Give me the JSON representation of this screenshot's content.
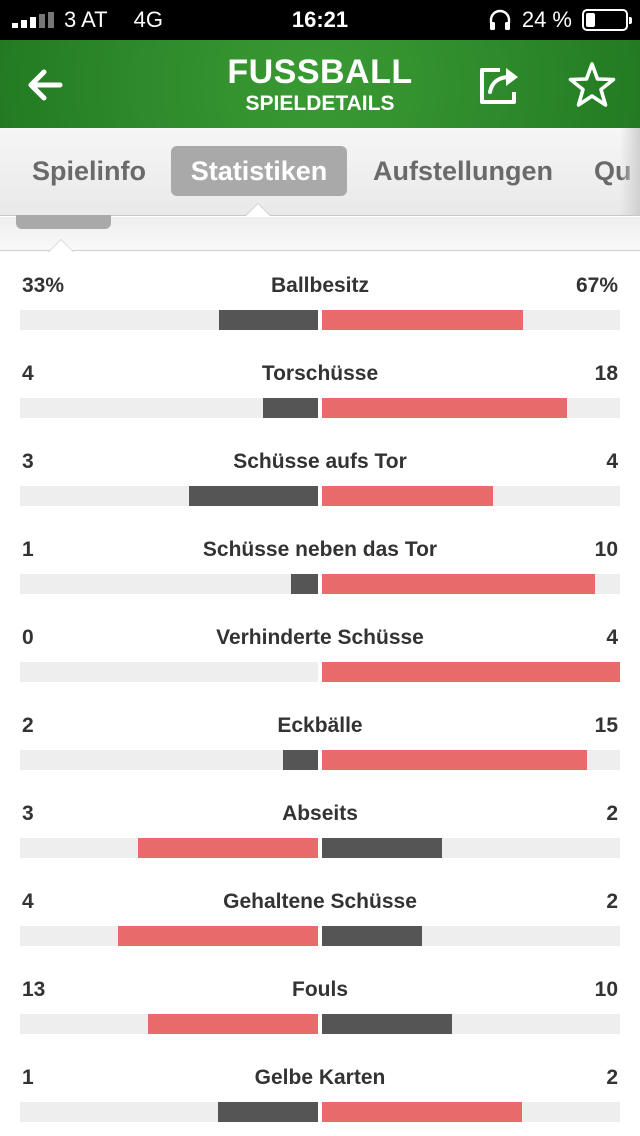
{
  "status_bar": {
    "carrier": "3 AT",
    "network": "4G",
    "time": "16:21",
    "battery": "24 %",
    "battery_level": 0.24
  },
  "header": {
    "title": "FUSSBALL",
    "subtitle": "SPIELDETAILS"
  },
  "tabs": [
    {
      "label": "Spielinfo",
      "active": false
    },
    {
      "label": "Statistiken",
      "active": true
    },
    {
      "label": "Aufstellungen",
      "active": false
    },
    {
      "label": "Qu",
      "active": false
    }
  ],
  "colors": {
    "header_green": "#2e8a2b",
    "home_bar_dark": "#555555",
    "away_bar_red": "#e86a6a",
    "track_gray": "#eeeeee"
  },
  "stats": [
    {
      "label": "Ballbesitz",
      "home": "33%",
      "away": "67%",
      "home_value": 33,
      "away_value": 67,
      "leader": "away"
    },
    {
      "label": "Torschüsse",
      "home": "4",
      "away": "18",
      "home_value": 4,
      "away_value": 18,
      "leader": "away"
    },
    {
      "label": "Schüsse aufs Tor",
      "home": "3",
      "away": "4",
      "home_value": 3,
      "away_value": 4,
      "leader": "away"
    },
    {
      "label": "Schüsse neben das Tor",
      "home": "1",
      "away": "10",
      "home_value": 1,
      "away_value": 10,
      "leader": "away"
    },
    {
      "label": "Verhinderte Schüsse",
      "home": "0",
      "away": "4",
      "home_value": 0,
      "away_value": 4,
      "leader": "away"
    },
    {
      "label": "Eckbälle",
      "home": "2",
      "away": "15",
      "home_value": 2,
      "away_value": 15,
      "leader": "away"
    },
    {
      "label": "Abseits",
      "home": "3",
      "away": "2",
      "home_value": 3,
      "away_value": 2,
      "leader": "home"
    },
    {
      "label": "Gehaltene Schüsse",
      "home": "4",
      "away": "2",
      "home_value": 4,
      "away_value": 2,
      "leader": "home"
    },
    {
      "label": "Fouls",
      "home": "13",
      "away": "10",
      "home_value": 13,
      "away_value": 10,
      "leader": "home"
    },
    {
      "label": "Gelbe Karten",
      "home": "1",
      "away": "2",
      "home_value": 1,
      "away_value": 2,
      "leader": "away"
    }
  ]
}
